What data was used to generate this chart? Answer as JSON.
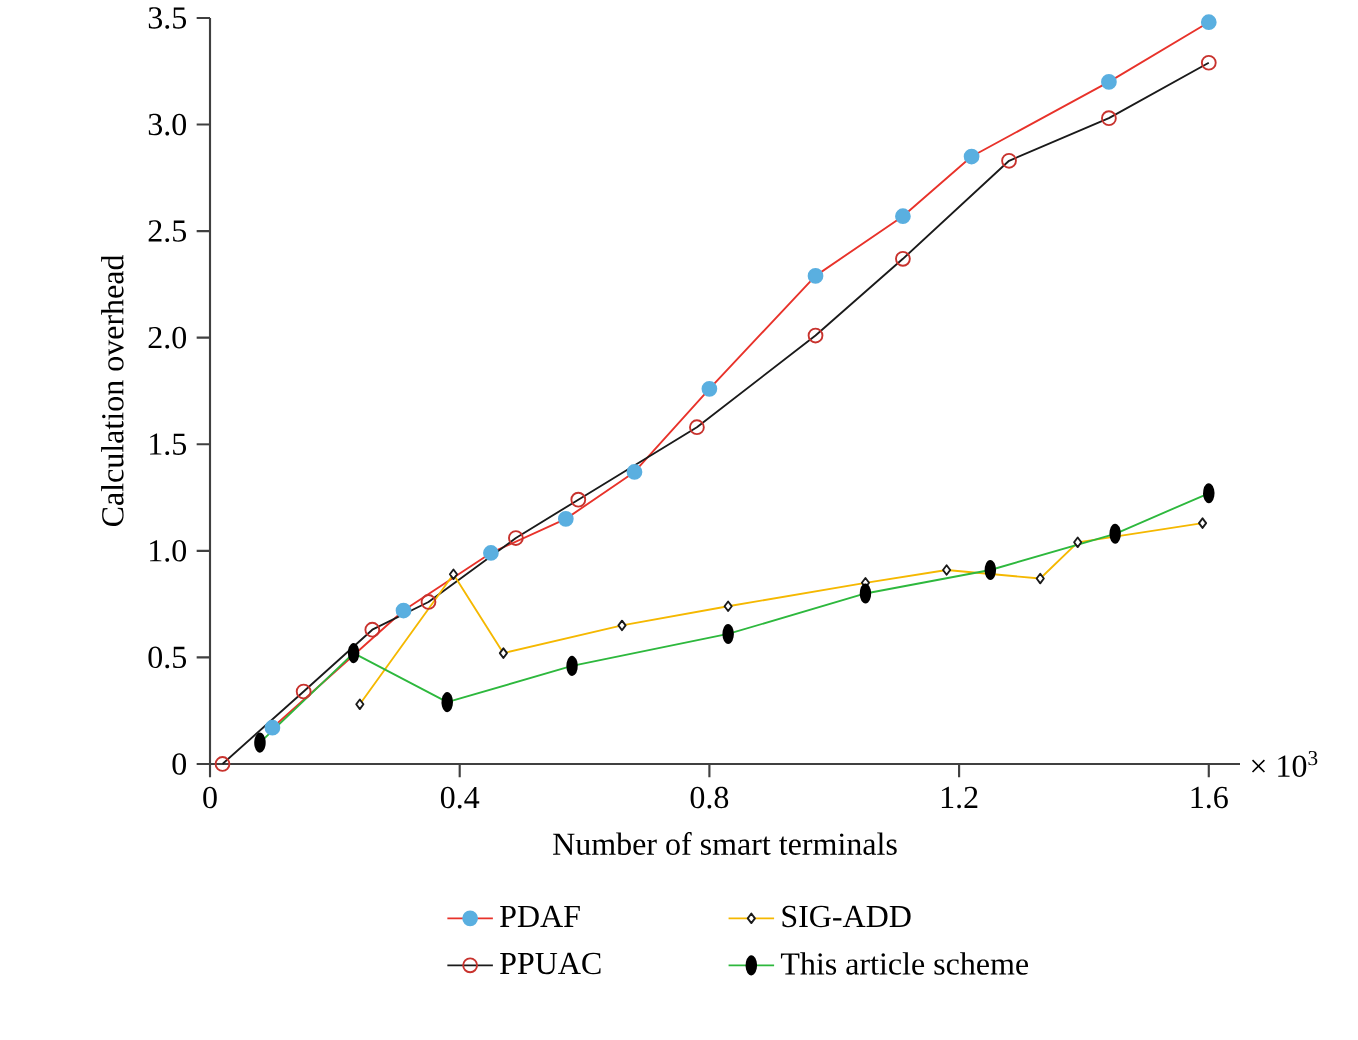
{
  "chart_data": {
    "type": "line",
    "xlabel": "Number of smart terminals",
    "ylabel": "Calculation overhead",
    "annotations": [
      "× 10$^{3}$"
    ],
    "xlim": [
      0,
      1.65
    ],
    "ylim": [
      0,
      3.5
    ],
    "xticks": [
      0,
      0.4,
      0.8,
      1.2,
      1.6
    ],
    "yticks": [
      0,
      0.5,
      {
        "value": 1,
        "label": "1.0"
      },
      1.5,
      {
        "value": 2,
        "label": "2.0"
      },
      2.5,
      {
        "value": 3,
        "label": "3.0"
      },
      3.5
    ],
    "grid": false,
    "legend": "bottom",
    "line_style": "solid",
    "series": [
      {
        "name": "PDAF",
        "color": "#e8322a",
        "marker": "circle",
        "colors": [
          "#5aafe0",
          "#5aafe0",
          "#5aafe0",
          "#5aafe0",
          "#5aafe0",
          "#5aafe0",
          "#5aafe0",
          "#5aafe0",
          "#5aafe0",
          "#5aafe0",
          "#5aafe0"
        ],
        "x": [
          0.1,
          0.31,
          0.45,
          0.57,
          0.68,
          0.8,
          0.97,
          1.11,
          1.22,
          1.44,
          1.6
        ],
        "values": [
          0.17,
          0.72,
          0.99,
          1.15,
          1.37,
          1.76,
          2.29,
          2.57,
          2.85,
          3.2,
          3.48
        ]
      },
      {
        "name": "PPUAC",
        "color": "#1a1a1a",
        "marker": "circle",
        "colors": [
          "#c8322d",
          "#c8322d",
          "#c8322d",
          "#c8322d",
          "#c8322d",
          "#c8322d",
          "#c8322d",
          "#c8322d",
          "#c8322d",
          "#c8322d",
          "#c8322d",
          "#c8322d"
        ],
        "x": [
          0.02,
          0.15,
          0.26,
          0.35,
          0.49,
          0.59,
          0.78,
          0.97,
          1.11,
          1.28,
          1.44,
          1.6
        ],
        "values": [
          0,
          0.34,
          0.63,
          0.76,
          1.06,
          1.24,
          1.58,
          2.01,
          2.37,
          2.83,
          3.03,
          3.29
        ]
      },
      {
        "name": "SIG-ADD",
        "color": "#f5b800",
        "marker": "diamond",
        "colors": [
          "#1a1a1a",
          "#1a1a1a",
          "#1a1a1a",
          "#1a1a1a",
          "#1a1a1a",
          "#1a1a1a",
          "#1a1a1a",
          "#1a1a1a",
          "#1a1a1a",
          "#1a1a1a"
        ],
        "x": [
          0.24,
          0.39,
          0.47,
          0.66,
          0.83,
          1.05,
          1.18,
          1.33,
          1.39,
          1.59
        ],
        "values": [
          0.28,
          0.89,
          0.52,
          0.65,
          0.74,
          0.85,
          0.91,
          0.87,
          1.04,
          1.13
        ]
      },
      {
        "name": "This article scheme",
        "color": "#2db83d",
        "marker": "circle",
        "colors": [
          "#000000",
          "#000000",
          "#000000",
          "#000000",
          "#000000",
          "#000000",
          "#000000",
          "#000000",
          "#000000"
        ],
        "x": [
          0.08,
          0.23,
          0.38,
          0.58,
          0.83,
          1.05,
          1.25,
          1.45,
          1.6
        ],
        "values": [
          0.1,
          0.52,
          0.29,
          0.46,
          0.61,
          0.8,
          0.91,
          1.08,
          1.27
        ]
      }
    ]
  }
}
